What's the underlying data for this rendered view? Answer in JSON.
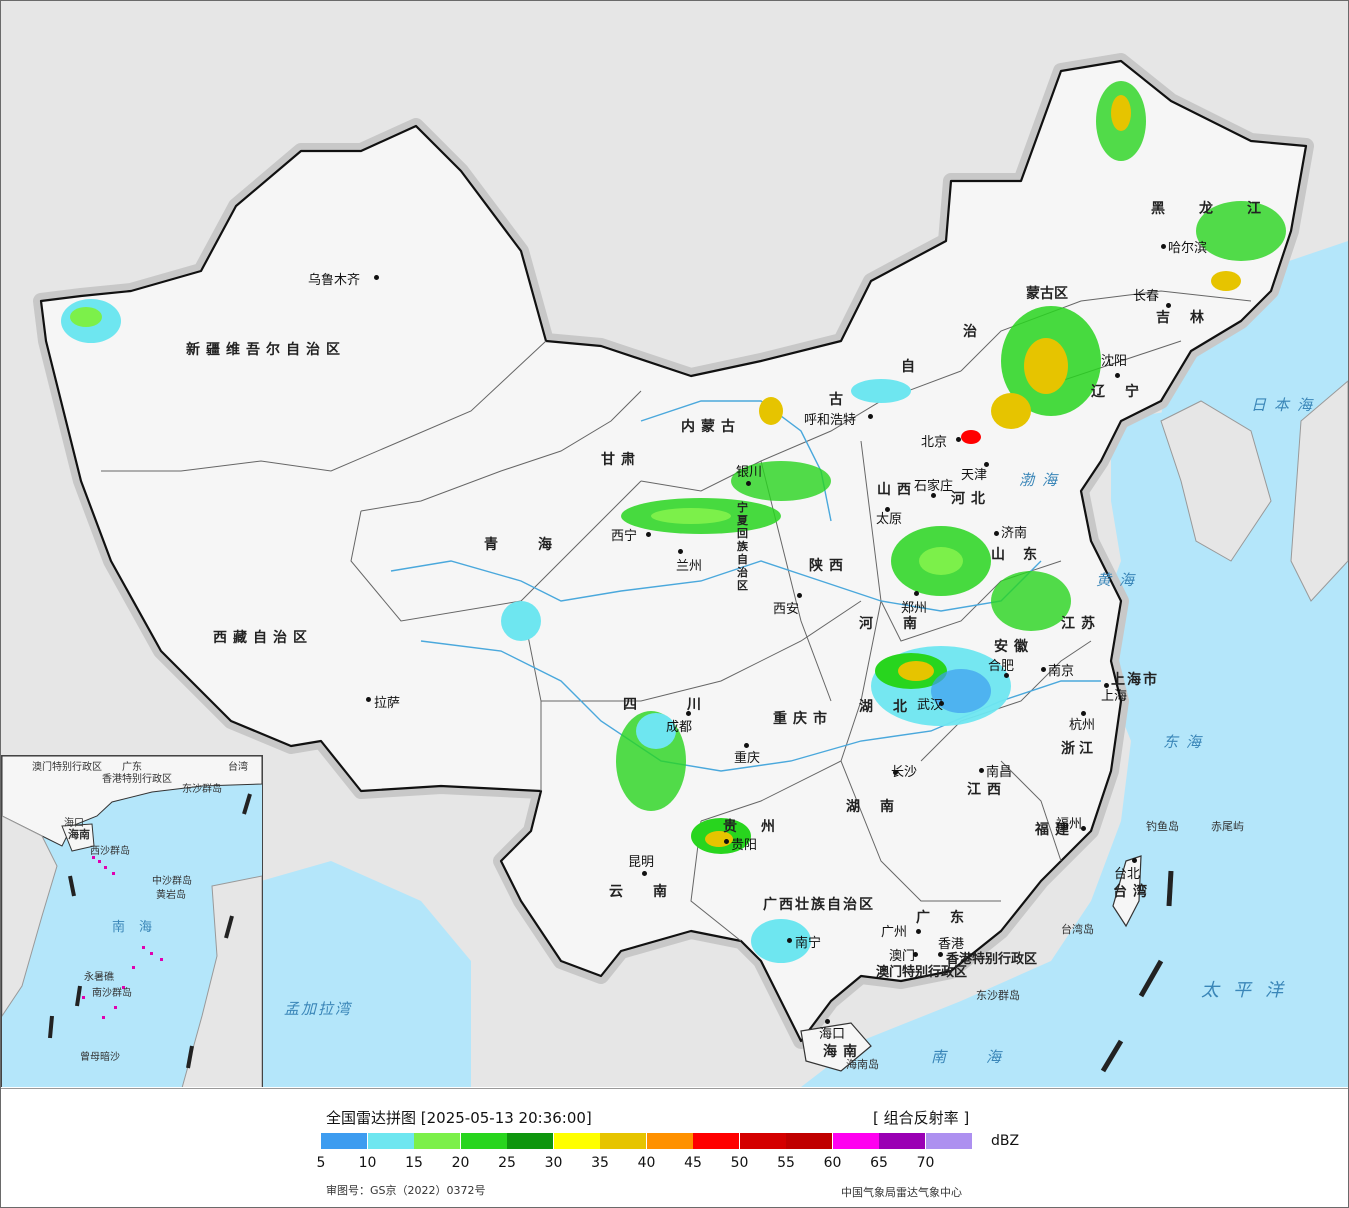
{
  "map": {
    "cities": [
      {
        "name": "乌鲁木齐"
      },
      {
        "name": "拉萨"
      },
      {
        "name": "西宁"
      },
      {
        "name": "兰州"
      },
      {
        "name": "银川"
      },
      {
        "name": "呼和浩特"
      },
      {
        "name": "北京"
      },
      {
        "name": "天津"
      },
      {
        "name": "石家庄"
      },
      {
        "name": "太原"
      },
      {
        "name": "济南"
      },
      {
        "name": "郑州"
      },
      {
        "name": "西安"
      },
      {
        "name": "成都"
      },
      {
        "name": "重庆"
      },
      {
        "name": "贵阳"
      },
      {
        "name": "昆明"
      },
      {
        "name": "南宁"
      },
      {
        "name": "广州"
      },
      {
        "name": "澳门"
      },
      {
        "name": "香港"
      },
      {
        "name": "海口"
      },
      {
        "name": "长沙"
      },
      {
        "name": "武汉"
      },
      {
        "name": "南昌"
      },
      {
        "name": "合肥"
      },
      {
        "name": "南京"
      },
      {
        "name": "上海"
      },
      {
        "name": "杭州"
      },
      {
        "name": "福州"
      },
      {
        "name": "台北"
      },
      {
        "name": "沈阳"
      },
      {
        "name": "长春"
      },
      {
        "name": "哈尔滨"
      }
    ],
    "provinces": [
      "新疆维吾尔自治区",
      "西藏自治区",
      "青海",
      "甘肃",
      "内蒙古",
      "四川",
      "重庆市",
      "云南",
      "贵州",
      "广西壮族自治区",
      "广东",
      "湖南",
      "湖北",
      "河南",
      "山西",
      "陕西",
      "河北",
      "山东",
      "江苏",
      "安徽",
      "浙江",
      "江西",
      "福建",
      "台湾",
      "海南",
      "黑龙江",
      "吉林",
      "辽宁",
      "上海市",
      "香港特别行政区",
      "澳门特别行政区",
      "宁夏回族自治区",
      "蒙古区",
      "治",
      "自",
      "古"
    ],
    "seas": [
      "日本海",
      "渤海",
      "黄海",
      "东海",
      "太平洋",
      "南海",
      "孟加拉湾"
    ],
    "islands": [
      "钓鱼岛",
      "赤尾屿",
      "台湾岛",
      "东沙群岛",
      "海南岛"
    ],
    "inset": {
      "labels": [
        "南海",
        "西沙群岛",
        "中沙群岛",
        "南沙群岛",
        "黄岩岛",
        "永暑礁",
        "曾母暗沙",
        "海口",
        "海南",
        "香港特别行政区",
        "澳门特别行政区",
        "广东",
        "台湾",
        "东沙群岛"
      ]
    }
  },
  "legend": {
    "title": "全国雷达拼图 [2025-05-13 20:36:00]",
    "product": "[ 组合反射率 ]",
    "unit": "dBZ",
    "ticks": [
      "5",
      "10",
      "15",
      "20",
      "25",
      "30",
      "35",
      "40",
      "45",
      "50",
      "55",
      "60",
      "65",
      "70"
    ],
    "colors": [
      "#3d9cf0",
      "#6ee6f0",
      "#7cf04a",
      "#28d51e",
      "#0e960e",
      "#ffff00",
      "#e6c400",
      "#ff9100",
      "#ff0000",
      "#d40000",
      "#c00000",
      "#ff00f0",
      "#9a00b4",
      "#ad90f0"
    ],
    "map_review_no": "审图号：GS京（2022）0372号",
    "source": "中国气象局雷达气象中心"
  }
}
